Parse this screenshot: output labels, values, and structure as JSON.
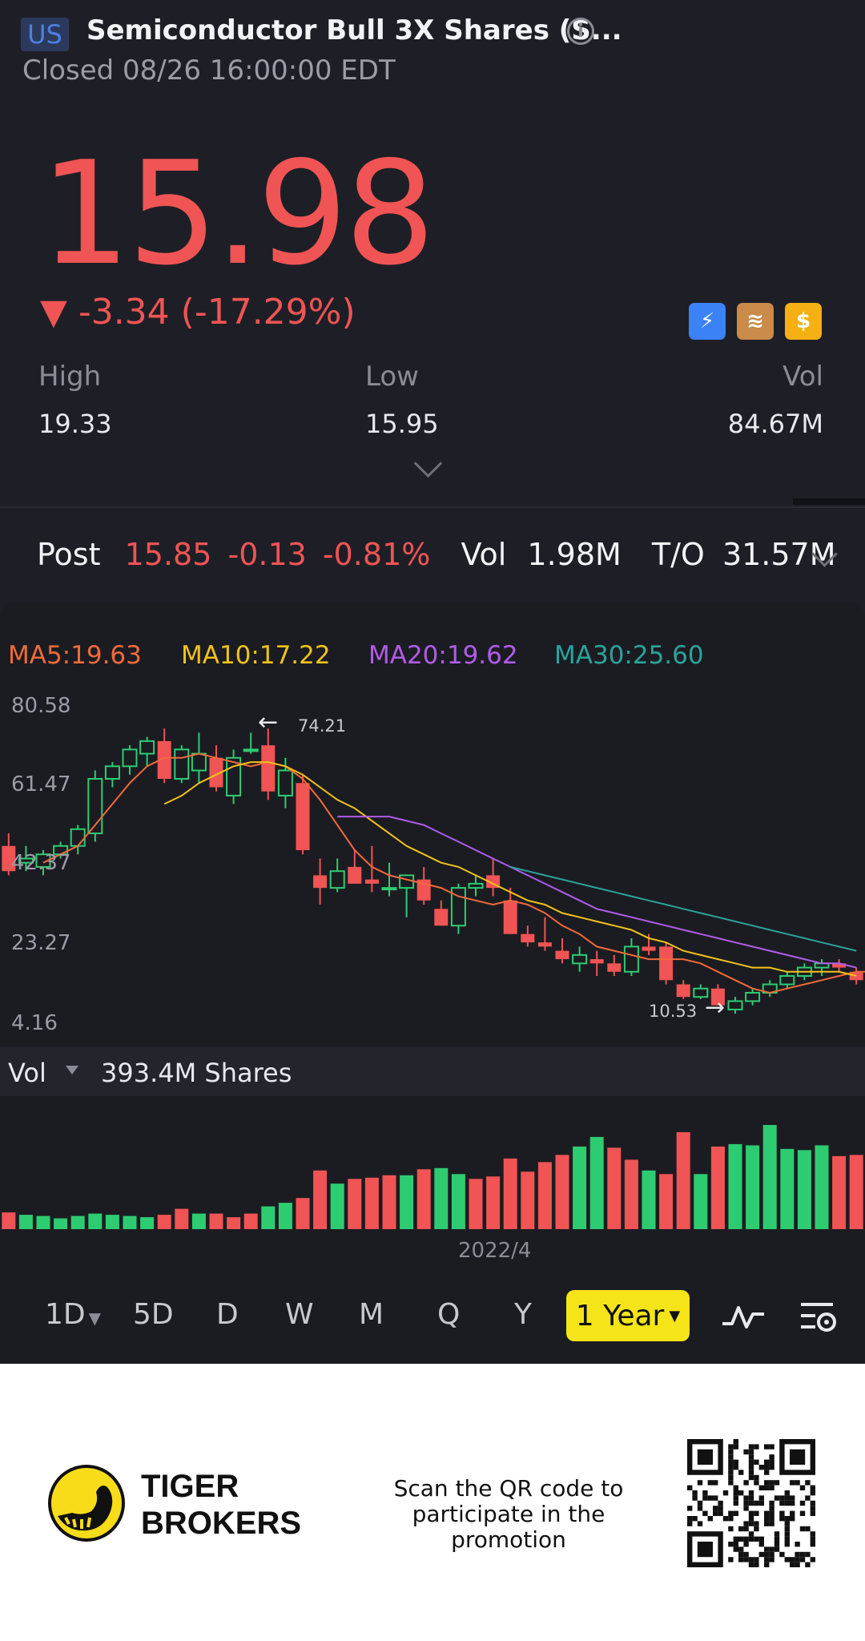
{
  "header": {
    "market_badge": "US",
    "title": "Semiconductor Bull 3X Shares (S...",
    "status": "Closed 08/26 16:00:00 EDT",
    "price": "15.98",
    "change": "▼ -3.34 (-17.29%)",
    "stats": [
      {
        "label": "High",
        "value": "19.33"
      },
      {
        "label": "Low",
        "value": "15.95"
      },
      {
        "label": "Vol",
        "value": "84.67M"
      }
    ]
  },
  "post": {
    "label": "Post",
    "price": "15.85",
    "change": "-0.13",
    "pct": "-0.81%",
    "vol_label": "Vol",
    "vol": "1.98M",
    "to_label": "T/O",
    "to": "31.57M"
  },
  "ma": [
    {
      "label": "MA5:19.63",
      "color": "#f06a3a"
    },
    {
      "label": "MA10:17.22",
      "color": "#f2c21a"
    },
    {
      "label": "MA20:19.62",
      "color": "#b05ce8"
    },
    {
      "label": "MA30:25.60",
      "color": "#2ba39a"
    }
  ],
  "colors": {
    "up": "#2ecc71",
    "down": "#f05454"
  },
  "chart_data": {
    "type": "candlestick",
    "y_ticks": [
      "80.58",
      "61.47",
      "42.37",
      "23.27",
      "4.16"
    ],
    "ylim": [
      4.16,
      80.58
    ],
    "high_annotation": "74.21",
    "low_annotation": "10.53",
    "x_tick": "2022/4",
    "candles": [
      {
        "o": 47,
        "h": 50,
        "l": 40,
        "c": 41
      },
      {
        "o": 43,
        "h": 47,
        "l": 41,
        "c": 44
      },
      {
        "o": 42,
        "h": 46,
        "l": 40,
        "c": 45
      },
      {
        "o": 45,
        "h": 48,
        "l": 44,
        "c": 47
      },
      {
        "o": 47,
        "h": 52,
        "l": 45,
        "c": 51
      },
      {
        "o": 50,
        "h": 65,
        "l": 48,
        "c": 63
      },
      {
        "o": 63,
        "h": 67,
        "l": 61,
        "c": 66
      },
      {
        "o": 66,
        "h": 71,
        "l": 64,
        "c": 70
      },
      {
        "o": 69,
        "h": 73,
        "l": 66,
        "c": 72
      },
      {
        "o": 72,
        "h": 75,
        "l": 62,
        "c": 63
      },
      {
        "o": 63,
        "h": 71,
        "l": 62,
        "c": 70
      },
      {
        "o": 65,
        "h": 74,
        "l": 62,
        "c": 69
      },
      {
        "o": 68,
        "h": 71,
        "l": 60,
        "c": 61
      },
      {
        "o": 59,
        "h": 70,
        "l": 57,
        "c": 68
      },
      {
        "o": 70,
        "h": 74,
        "l": 69,
        "c": 70
      },
      {
        "o": 71,
        "h": 75,
        "l": 58,
        "c": 60
      },
      {
        "o": 59,
        "h": 68,
        "l": 56,
        "c": 65
      },
      {
        "o": 62,
        "h": 64,
        "l": 45,
        "c": 46
      },
      {
        "o": 40,
        "h": 44,
        "l": 33,
        "c": 37
      },
      {
        "o": 37,
        "h": 44,
        "l": 36,
        "c": 41
      },
      {
        "o": 42,
        "h": 46,
        "l": 38,
        "c": 38
      },
      {
        "o": 39,
        "h": 47,
        "l": 36,
        "c": 38
      },
      {
        "o": 37,
        "h": 43,
        "l": 35,
        "c": 37
      },
      {
        "o": 37,
        "h": 40,
        "l": 30,
        "c": 40
      },
      {
        "o": 39,
        "h": 42,
        "l": 33,
        "c": 34
      },
      {
        "o": 32,
        "h": 34,
        "l": 28,
        "c": 28
      },
      {
        "o": 28,
        "h": 38,
        "l": 26,
        "c": 37
      },
      {
        "o": 37,
        "h": 40,
        "l": 35,
        "c": 38
      },
      {
        "o": 40,
        "h": 44,
        "l": 35,
        "c": 37
      },
      {
        "o": 34,
        "h": 37,
        "l": 26,
        "c": 26
      },
      {
        "o": 26,
        "h": 28,
        "l": 23,
        "c": 24
      },
      {
        "o": 24,
        "h": 30,
        "l": 22,
        "c": 23
      },
      {
        "o": 22,
        "h": 25,
        "l": 19,
        "c": 20
      },
      {
        "o": 19,
        "h": 23,
        "l": 17,
        "c": 21
      },
      {
        "o": 20,
        "h": 22,
        "l": 16,
        "c": 19
      },
      {
        "o": 19,
        "h": 21,
        "l": 16,
        "c": 17
      },
      {
        "o": 17,
        "h": 25,
        "l": 16,
        "c": 23
      },
      {
        "o": 23,
        "h": 26,
        "l": 21,
        "c": 22
      },
      {
        "o": 23,
        "h": 24,
        "l": 14,
        "c": 15
      },
      {
        "o": 14,
        "h": 15,
        "l": 10.5,
        "c": 11
      },
      {
        "o": 11,
        "h": 14,
        "l": 10.5,
        "c": 13
      },
      {
        "o": 13,
        "h": 14,
        "l": 9,
        "c": 9
      },
      {
        "o": 8,
        "h": 11,
        "l": 7,
        "c": 10
      },
      {
        "o": 10,
        "h": 13,
        "l": 9,
        "c": 12
      },
      {
        "o": 12,
        "h": 15,
        "l": 11,
        "c": 14
      },
      {
        "o": 14,
        "h": 17,
        "l": 13,
        "c": 16
      },
      {
        "o": 16,
        "h": 19,
        "l": 15,
        "c": 18
      },
      {
        "o": 18,
        "h": 20,
        "l": 16,
        "c": 19
      },
      {
        "o": 19,
        "h": 20,
        "l": 17,
        "c": 18
      },
      {
        "o": 17,
        "h": 18,
        "l": 14,
        "c": 15
      }
    ],
    "ma_lines": [
      {
        "name": "MA5",
        "color": "#f06a3a",
        "start": 2,
        "values": [
          43,
          45,
          47,
          52,
          57,
          62,
          66,
          68,
          68,
          69,
          68,
          67,
          66,
          67,
          66,
          63,
          58,
          52,
          46,
          42,
          40,
          39,
          38,
          37,
          35,
          34,
          33,
          34,
          33,
          31,
          28,
          26,
          23,
          22,
          21,
          20,
          20,
          20,
          19,
          17,
          15,
          13,
          12,
          13,
          14,
          15,
          16,
          17,
          17
        ]
      },
      {
        "name": "MA10",
        "color": "#f2c21a",
        "start": 9,
        "values": [
          57,
          59,
          62,
          64,
          66,
          67,
          67,
          66,
          64,
          61,
          58,
          56,
          53,
          50,
          47,
          45,
          43,
          42,
          40,
          38,
          36,
          34,
          33,
          31,
          30,
          29,
          28,
          27,
          25,
          24,
          22,
          21,
          20,
          19,
          18,
          18,
          17,
          17,
          17,
          17,
          16
        ]
      },
      {
        "name": "MA20",
        "color": "#b05ce8",
        "start": 19,
        "values": [
          54,
          54,
          54,
          54,
          53,
          52,
          50,
          48,
          46,
          44,
          42,
          40,
          38,
          36,
          34,
          32,
          31,
          30,
          29,
          28,
          27,
          26,
          25,
          24,
          23,
          22,
          21,
          20,
          19,
          19,
          18
        ]
      },
      {
        "name": "MA30",
        "color": "#2ba39a",
        "start": 29,
        "values": [
          42,
          41,
          40,
          39,
          38,
          37,
          36,
          35,
          34,
          33,
          32,
          31,
          30,
          29,
          28,
          27,
          26,
          25,
          24,
          23,
          22
        ]
      }
    ],
    "vol_label": "Vol",
    "vol_total": "393.4M Shares",
    "volumes": [
      {
        "v": 14,
        "up": false
      },
      {
        "v": 12,
        "up": true
      },
      {
        "v": 11,
        "up": true
      },
      {
        "v": 9,
        "up": true
      },
      {
        "v": 11,
        "up": true
      },
      {
        "v": 13,
        "up": true
      },
      {
        "v": 12,
        "up": true
      },
      {
        "v": 11,
        "up": true
      },
      {
        "v": 10,
        "up": true
      },
      {
        "v": 12,
        "up": false
      },
      {
        "v": 17,
        "up": false
      },
      {
        "v": 13,
        "up": true
      },
      {
        "v": 13,
        "up": false
      },
      {
        "v": 10,
        "up": false
      },
      {
        "v": 13,
        "up": false
      },
      {
        "v": 19,
        "up": true
      },
      {
        "v": 22,
        "up": true
      },
      {
        "v": 26,
        "up": false
      },
      {
        "v": 49,
        "up": false
      },
      {
        "v": 38,
        "up": true
      },
      {
        "v": 42,
        "up": false
      },
      {
        "v": 43,
        "up": false
      },
      {
        "v": 45,
        "up": false
      },
      {
        "v": 45,
        "up": true
      },
      {
        "v": 50,
        "up": false
      },
      {
        "v": 51,
        "up": true
      },
      {
        "v": 46,
        "up": true
      },
      {
        "v": 42,
        "up": false
      },
      {
        "v": 44,
        "up": false
      },
      {
        "v": 59,
        "up": false
      },
      {
        "v": 48,
        "up": false
      },
      {
        "v": 56,
        "up": false
      },
      {
        "v": 62,
        "up": false
      },
      {
        "v": 69,
        "up": true
      },
      {
        "v": 77,
        "up": true
      },
      {
        "v": 68,
        "up": false
      },
      {
        "v": 58,
        "up": false
      },
      {
        "v": 49,
        "up": true
      },
      {
        "v": 46,
        "up": false
      },
      {
        "v": 81,
        "up": false
      },
      {
        "v": 46,
        "up": true
      },
      {
        "v": 69,
        "up": false
      },
      {
        "v": 71,
        "up": true
      },
      {
        "v": 70,
        "up": true
      },
      {
        "v": 87,
        "up": true
      },
      {
        "v": 67,
        "up": true
      },
      {
        "v": 66,
        "up": true
      },
      {
        "v": 70,
        "up": true
      },
      {
        "v": 61,
        "up": false
      },
      {
        "v": 62,
        "up": false
      }
    ]
  },
  "timeframes": [
    "1D",
    "5D",
    "D",
    "W",
    "M",
    "Q",
    "Y"
  ],
  "active_timeframe": "1 Year",
  "footer": {
    "brand_line1": "TIGER",
    "brand_line2": "BROKERS",
    "promo_line1": "Scan the QR code to",
    "promo_line2": "participate in the promotion"
  }
}
